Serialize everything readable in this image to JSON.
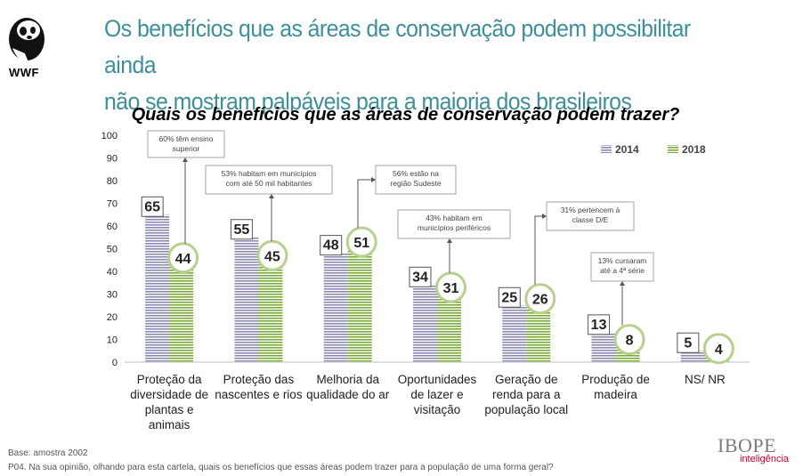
{
  "brand": {
    "logo_text": "WWF",
    "provider_name": "IBOPE",
    "provider_sub": "inteligência"
  },
  "header": {
    "title_line1": "Os benefícios que as áreas de conservação podem possibilitar ainda",
    "title_line2": "não se mostram palpáveis para a maioria dos brasileiros"
  },
  "footer": {
    "base": "Base: amostra 2002",
    "question": "P04. Na sua opinião, olhando para esta cartela, quais os benefícios que essas áreas podem trazer para a população de uma forma geral?"
  },
  "colors": {
    "accent": "#3d8f9a",
    "series_2014": "#8b8bb5",
    "series_2018": "#7aab3c",
    "circle": "#b8d08e"
  },
  "chart_data": {
    "type": "bar",
    "title": "Quais os benefícios que as áreas de conservação podem trazer?",
    "xlabel": "",
    "ylabel": "",
    "ylim": [
      0,
      100
    ],
    "yticks": [
      "0",
      "10",
      "20",
      "30",
      "40",
      "50",
      "60",
      "70",
      "80",
      "90",
      "100"
    ],
    "grid": false,
    "legend_position": "top-right",
    "categories": [
      [
        "Proteção da",
        "diversidade de",
        "plantas e",
        "animais"
      ],
      [
        "Proteção das",
        "nascentes e rios"
      ],
      [
        "Melhoria da",
        "qualidade do ar"
      ],
      [
        "Oportunidades",
        "de lazer e",
        "visitação"
      ],
      [
        "Geração de",
        "renda para a",
        "população local"
      ],
      [
        "Produção de",
        "madeira"
      ],
      [
        "NS/ NR"
      ]
    ],
    "series": [
      {
        "name": "2014",
        "values": [
          65,
          55,
          48,
          34,
          25,
          13,
          5
        ]
      },
      {
        "name": "2018",
        "values": [
          44,
          45,
          51,
          31,
          26,
          8,
          4
        ]
      }
    ],
    "annotations": [
      {
        "category_index": 0,
        "lines": [
          "60% têm ensino",
          "superior"
        ]
      },
      {
        "category_index": 1,
        "lines": [
          "53% habitam em municípios",
          "com até 50 mil habitantes"
        ]
      },
      {
        "category_index": 2,
        "lines": [
          "56% estão na",
          "região Sudeste"
        ]
      },
      {
        "category_index": 3,
        "lines": [
          "43% habitam em",
          "municípios periféricos"
        ]
      },
      {
        "category_index": 4,
        "lines": [
          "31% pertencem à",
          "classe D/E"
        ]
      },
      {
        "category_index": 5,
        "lines": [
          "13% cursaram",
          "até a 4ª série"
        ]
      }
    ]
  }
}
